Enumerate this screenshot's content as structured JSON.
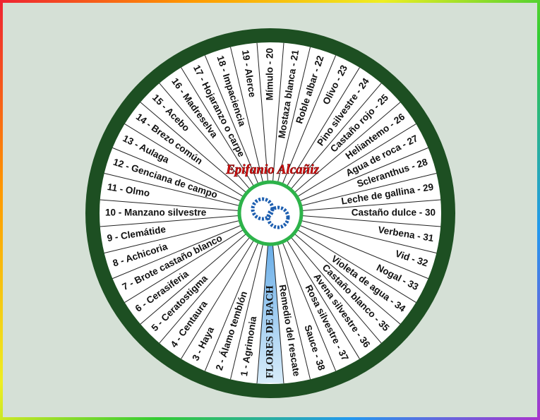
{
  "title": "FLORES DE BACH",
  "author": "Epifanio Alcañiz",
  "segments": [
    "1 - Agrimonia",
    "2 - Álamo temblón",
    "3 - Haya",
    "4 - Centaura",
    "5 - Ceratostigma",
    "6 - Cerasiferia",
    "7 - Brote castaño blanco",
    "8 - Achicoria",
    "9 - Clemátide",
    "10 - Manzano silvestre",
    "11 - Olmo",
    "12 - Genciana de campo",
    "13 - Aulaga",
    "14 - Brezo común",
    "15 - Acebo",
    "16 - Madreselva",
    "17 - Hojaranzo o carpe",
    "18 - Impaciencia",
    "19 - Alerce",
    "Mímulo - 20",
    "Mostaza blanca - 21",
    "Roble albar - 22",
    "Olivo - 23",
    "Pino silvestre - 24",
    "Castaño rojo - 25",
    "Heliantemo - 26",
    "Agua de roca - 27",
    "Scleranthus - 28",
    "Leche de gallina - 29",
    "Castaño dulce - 30",
    "Verbena - 31",
    "Vid - 32",
    "Nogal - 33",
    "Violeta de agua - 34",
    "Castaño blanco - 35",
    "Avena silvestre - 36",
    "Rosa silvestre - 37",
    "Sauce - 38",
    "Remedio del rescate"
  ]
}
